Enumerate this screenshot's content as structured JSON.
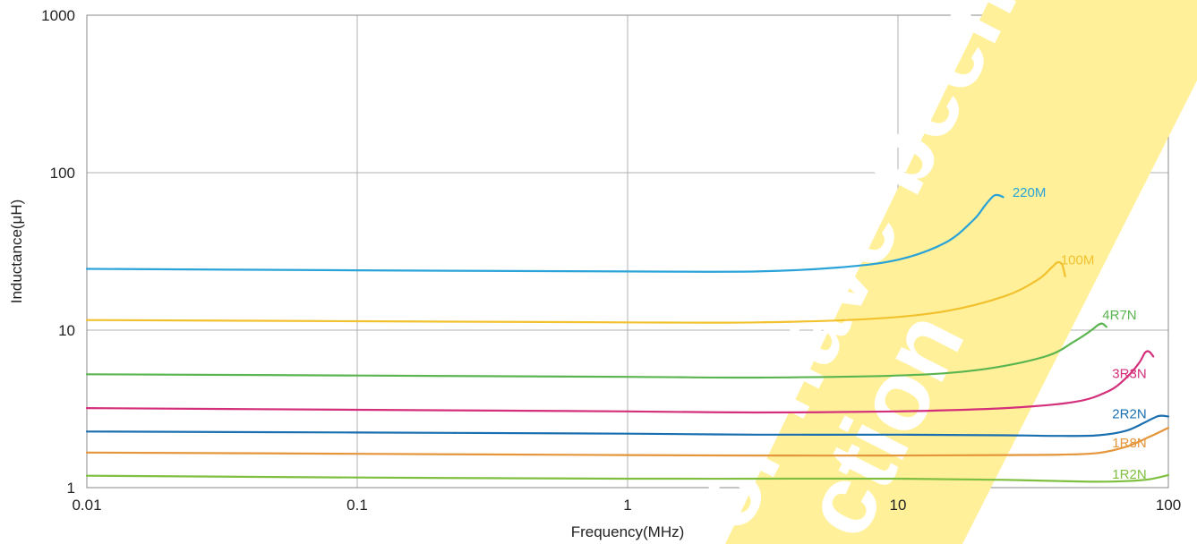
{
  "chart_data": {
    "type": "line",
    "title": "",
    "xlabel": "Frequency(MHz)",
    "ylabel": "Inductance(μH)",
    "x_scale": "log",
    "y_scale": "log",
    "xlim": [
      0.01,
      100
    ],
    "ylim": [
      1,
      1000
    ],
    "grid": true,
    "x_ticks": [
      {
        "value": 0.01,
        "label": "0.01"
      },
      {
        "value": 0.1,
        "label": "0.1"
      },
      {
        "value": 1,
        "label": "1"
      },
      {
        "value": 10,
        "label": "10"
      },
      {
        "value": 100,
        "label": "100"
      }
    ],
    "y_ticks": [
      {
        "value": 1,
        "label": "1"
      },
      {
        "value": 10,
        "label": "10"
      },
      {
        "value": 100,
        "label": "100"
      },
      {
        "value": 1000,
        "label": "1000"
      }
    ],
    "series": [
      {
        "name": "220M",
        "color": "#2aa3d8",
        "label_at": [
          26.5,
          75
        ],
        "points": [
          [
            0.01,
            24.5
          ],
          [
            0.1,
            24.0
          ],
          [
            1,
            23.6
          ],
          [
            3,
            23.6
          ],
          [
            6,
            25.0
          ],
          [
            10,
            28.0
          ],
          [
            15,
            36.0
          ],
          [
            19,
            50.0
          ],
          [
            21,
            62.0
          ],
          [
            22.5,
            71.0
          ],
          [
            23.5,
            72.0
          ],
          [
            24.5,
            70.0
          ]
        ]
      },
      {
        "name": "100M",
        "color": "#f2c12e",
        "label_at": [
          40,
          28
        ],
        "points": [
          [
            0.01,
            11.6
          ],
          [
            0.1,
            11.4
          ],
          [
            1,
            11.2
          ],
          [
            3,
            11.2
          ],
          [
            8,
            11.8
          ],
          [
            15,
            13.2
          ],
          [
            25,
            16.5
          ],
          [
            33,
            21.0
          ],
          [
            37,
            25.0
          ],
          [
            39,
            27.0
          ],
          [
            40.5,
            26.0
          ],
          [
            41.5,
            22.0
          ]
        ]
      },
      {
        "name": "4R7N",
        "color": "#5ab550",
        "label_at": [
          57,
          12.5
        ],
        "points": [
          [
            0.01,
            5.25
          ],
          [
            0.1,
            5.15
          ],
          [
            1,
            5.05
          ],
          [
            3,
            5.0
          ],
          [
            10,
            5.15
          ],
          [
            20,
            5.6
          ],
          [
            35,
            6.8
          ],
          [
            45,
            8.5
          ],
          [
            52,
            10.0
          ],
          [
            55,
            10.8
          ],
          [
            57,
            11.0
          ],
          [
            59,
            10.5
          ]
        ]
      },
      {
        "name": "3R3N",
        "color": "#d42f7a",
        "label_at": [
          62,
          5.3
        ],
        "points": [
          [
            0.01,
            3.2
          ],
          [
            0.1,
            3.12
          ],
          [
            1,
            3.05
          ],
          [
            3,
            3.0
          ],
          [
            10,
            3.05
          ],
          [
            25,
            3.2
          ],
          [
            45,
            3.5
          ],
          [
            60,
            4.1
          ],
          [
            70,
            5.0
          ],
          [
            78,
            6.2
          ],
          [
            82,
            7.2
          ],
          [
            85,
            7.3
          ],
          [
            88,
            6.8
          ]
        ]
      },
      {
        "name": "2R2N",
        "color": "#1a6fb0",
        "label_at": [
          62,
          2.95
        ],
        "points": [
          [
            0.01,
            2.27
          ],
          [
            0.1,
            2.24
          ],
          [
            1,
            2.2
          ],
          [
            3,
            2.17
          ],
          [
            10,
            2.17
          ],
          [
            25,
            2.15
          ],
          [
            40,
            2.13
          ],
          [
            55,
            2.15
          ],
          [
            70,
            2.3
          ],
          [
            82,
            2.6
          ],
          [
            92,
            2.85
          ],
          [
            100,
            2.83
          ]
        ]
      },
      {
        "name": "1R8N",
        "color": "#e5953a",
        "label_at": [
          62,
          1.92
        ],
        "points": [
          [
            0.01,
            1.67
          ],
          [
            0.1,
            1.64
          ],
          [
            1,
            1.61
          ],
          [
            3,
            1.6
          ],
          [
            10,
            1.6
          ],
          [
            25,
            1.61
          ],
          [
            40,
            1.62
          ],
          [
            55,
            1.66
          ],
          [
            70,
            1.82
          ],
          [
            85,
            2.1
          ],
          [
            100,
            2.4
          ]
        ]
      },
      {
        "name": "1R2N",
        "color": "#7fbf3f",
        "label_at": [
          62,
          1.22
        ],
        "points": [
          [
            0.01,
            1.19
          ],
          [
            0.1,
            1.16
          ],
          [
            1,
            1.14
          ],
          [
            3,
            1.14
          ],
          [
            10,
            1.14
          ],
          [
            25,
            1.12
          ],
          [
            40,
            1.1
          ],
          [
            55,
            1.09
          ],
          [
            70,
            1.1
          ],
          [
            85,
            1.13
          ],
          [
            100,
            1.2
          ]
        ]
      }
    ]
  }
}
